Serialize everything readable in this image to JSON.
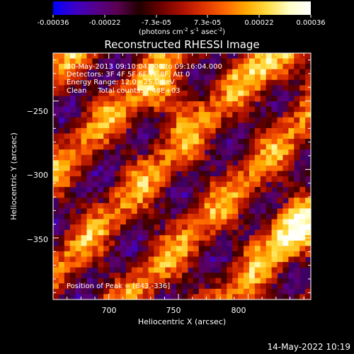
{
  "colorbar": {
    "ticks": [
      "-0.00036",
      "-0.00022",
      "-7.3e-05",
      "7.3e-05",
      "0.00022",
      "0.00036"
    ],
    "unit_main": "(photons cm",
    "unit_exp1": "-2",
    "unit_mid": " s",
    "unit_exp2": "-1",
    "unit_tail": " asec",
    "unit_exp3": "-2",
    "unit_close": ")",
    "colors": [
      "#0000ff",
      "#3c00c8",
      "#55008c",
      "#5a0050",
      "#200000",
      "#6a0000",
      "#aa1000",
      "#dd3300",
      "#ff6600",
      "#ffaa00",
      "#ffdd44",
      "#ffffc8",
      "#ffffff"
    ]
  },
  "chart_data": {
    "type": "heatmap",
    "title": "Reconstructed RHESSI Image",
    "xlabel": "Heliocentric X (arcsec)",
    "ylabel": "Heliocentric Y (arcsec)",
    "xlim": [
      660,
      845
    ],
    "ylim": [
      -395,
      -215
    ],
    "x_ticks": [
      700,
      750,
      800
    ],
    "x_tick_labels": [
      "700",
      "750",
      "800"
    ],
    "y_ticks": [
      -250,
      -300,
      -350
    ],
    "y_tick_labels": [
      "−250",
      "−300",
      "−350"
    ],
    "value_range": [
      -0.00036,
      0.00036
    ],
    "annotations": [
      "30-May-2013 09:10:04.000 to 09:16:04.000",
      "Detectors: 3F 4F 5F 6F 7F 8F, Att 0",
      "Energy Range: 12.0 - 25.0 keV",
      "Clean     Total counts: 7.48E+03"
    ],
    "peak_label": "Position of Peak = [843,-336]",
    "peak": [
      843,
      -336
    ],
    "footer": "14-May-2022 10:19"
  }
}
